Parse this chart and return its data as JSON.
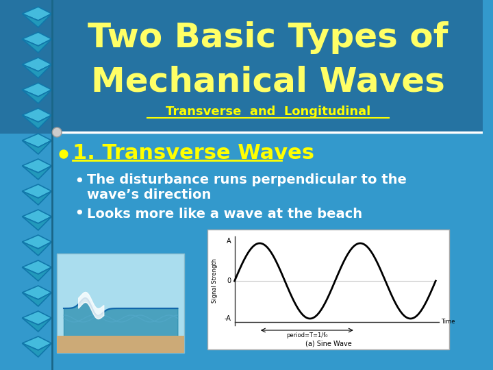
{
  "bg_color": "#3399cc",
  "title_line1": "Two Basic Types of",
  "title_line2": "Mechanical Waves",
  "title_color": "#ffff66",
  "subtitle": "Transverse  and  Longitudinal",
  "subtitle_color": "#ffff00",
  "subtitle_underline": true,
  "divider_color": "#1a5580",
  "bullet1_text": "1. Transverse Waves",
  "bullet1_color": "#ffff00",
  "bullet1_underline": true,
  "sub_bullet1": "The disturbance runs perpendicular to the\nwave’s direction",
  "sub_bullet2": "Looks more like a wave at the beach",
  "sub_bullet_color": "#ffffff",
  "spiral_color": "#55ccee",
  "panel_bg": "#ccddee",
  "sine_wave_color": "#000000",
  "label_A": "A",
  "label_neg_A": "-A",
  "label_0": "0",
  "label_time": "Time",
  "label_signal": "Signal Strength",
  "label_period": "period=T=1/f₀",
  "label_caption": "(a) Sine Wave"
}
